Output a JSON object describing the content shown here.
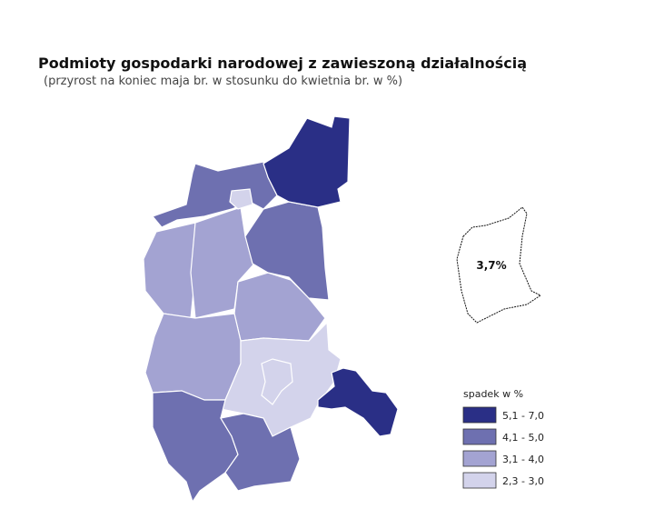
{
  "title": "Podmioty gospodarki narodowej z zawieszoną działalnością",
  "subtitle": "(przyrost na koniec maja br. w stosunku do kwietnia br. w %)",
  "inset": {
    "label": "3,7%"
  },
  "legend": {
    "title": "spadek w %",
    "items": [
      {
        "label": "5,1 - 7,0",
        "color": "#2a2f86"
      },
      {
        "label": "4,1 - 5,0",
        "color": "#6e70b0"
      },
      {
        "label": "3,1 - 4,0",
        "color": "#a3a3d2"
      },
      {
        "label": "2,3 - 3,0",
        "color": "#d3d3eb"
      }
    ]
  }
}
